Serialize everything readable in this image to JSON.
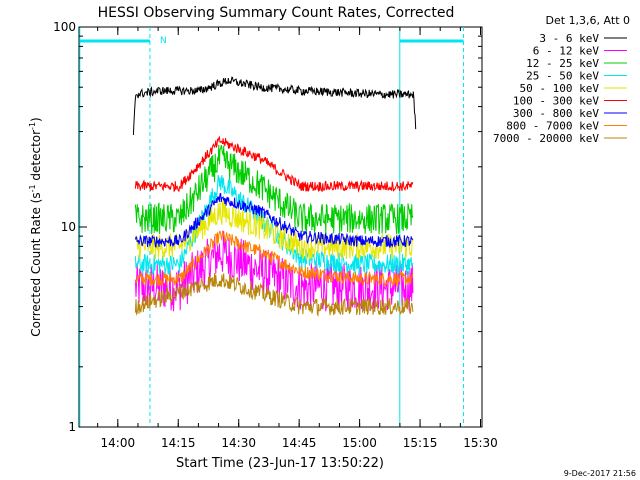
{
  "chart_data": {
    "type": "line",
    "title": "HESSI Observing Summary Count Rates, Corrected",
    "xlabel": "Start Time (23-Jun-17 13:50:22)",
    "ylabel_main": "Corrected Count Rate (s",
    "ylabel_sup": "-1",
    "ylabel_mid": " detector",
    "ylabel_sup2": "-1",
    "ylabel_end": ")",
    "x_unit": "minutes after 13:50:22",
    "xlim": [
      0,
      100
    ],
    "ylim": [
      1,
      100
    ],
    "yscale": "log",
    "x_ticks": [
      {
        "label": "14:00",
        "value": 9.63
      },
      {
        "label": "14:15",
        "value": 24.63
      },
      {
        "label": "14:30",
        "value": 39.63
      },
      {
        "label": "14:45",
        "value": 54.63
      },
      {
        "label": "15:00",
        "value": 69.63
      },
      {
        "label": "15:15",
        "value": 84.63
      },
      {
        "label": "15:30",
        "value": 99.63
      }
    ],
    "y_ticks": [
      {
        "label": "100",
        "value": 100
      },
      {
        "label": "10",
        "value": 10
      },
      {
        "label": "1",
        "value": 1
      }
    ],
    "legend_header": "Det 1,3,6, Att 0",
    "legend_position": "right",
    "timestamp": "9-Dec-2017 21:56",
    "night_marker": "N",
    "markers": {
      "solid_lines_x": [
        0.2,
        79.6
      ],
      "dashed_lines_x": [
        17.6,
        95.4
      ],
      "bars": [
        [
          0.2,
          17.6
        ],
        [
          79.6,
          95.4
        ]
      ],
      "marker_color": "#00e5ee"
    },
    "series": [
      {
        "name": "3 - 6 keV",
        "color": "#000000",
        "base": 46,
        "peak": 52,
        "noise": 0.05,
        "samples": [
          [
            13.5,
            28
          ],
          [
            14,
            46
          ],
          [
            20,
            48
          ],
          [
            30,
            48
          ],
          [
            37,
            54
          ],
          [
            45,
            50
          ],
          [
            55,
            48
          ],
          [
            65,
            47
          ],
          [
            75,
            46
          ],
          [
            83,
            46
          ],
          [
            83.6,
            30
          ]
        ]
      },
      {
        "name": "6 - 12 keV",
        "color": "#ff00ff",
        "base": 5,
        "peak": 7.5,
        "noise": 0.28,
        "samples": [
          [
            14,
            5
          ],
          [
            25,
            5
          ],
          [
            35,
            7.5
          ],
          [
            45,
            6
          ],
          [
            55,
            5
          ],
          [
            70,
            5
          ],
          [
            83,
            5
          ]
        ]
      },
      {
        "name": "12 - 25 keV",
        "color": "#00cc00",
        "base": 11,
        "peak": 22,
        "noise": 0.18,
        "samples": [
          [
            14,
            11
          ],
          [
            25,
            11
          ],
          [
            35,
            22
          ],
          [
            45,
            16
          ],
          [
            55,
            11
          ],
          [
            70,
            11
          ],
          [
            83,
            11
          ]
        ]
      },
      {
        "name": "25 - 50 keV",
        "color": "#00e5ee",
        "base": 6.5,
        "peak": 17,
        "noise": 0.12,
        "samples": [
          [
            14,
            6.5
          ],
          [
            25,
            6.5
          ],
          [
            35,
            17
          ],
          [
            45,
            11
          ],
          [
            55,
            7
          ],
          [
            70,
            6.5
          ],
          [
            83,
            6.5
          ]
        ]
      },
      {
        "name": "50 - 100 keV",
        "color": "#e6e600",
        "base": 8,
        "peak": 12,
        "noise": 0.15,
        "samples": [
          [
            14,
            8
          ],
          [
            25,
            8
          ],
          [
            35,
            12
          ],
          [
            45,
            10
          ],
          [
            55,
            8
          ],
          [
            70,
            8
          ],
          [
            83,
            8
          ]
        ]
      },
      {
        "name": "100 - 300 keV",
        "color": "#ff0000",
        "base": 16,
        "peak": 27,
        "noise": 0.06,
        "samples": [
          [
            14,
            16
          ],
          [
            25,
            16
          ],
          [
            35,
            27
          ],
          [
            45,
            22
          ],
          [
            55,
            16
          ],
          [
            70,
            16
          ],
          [
            83,
            16
          ]
        ]
      },
      {
        "name": "300 - 800 keV",
        "color": "#0000ff",
        "base": 8.5,
        "peak": 14,
        "noise": 0.07,
        "samples": [
          [
            14,
            8.5
          ],
          [
            25,
            8.5
          ],
          [
            35,
            14
          ],
          [
            45,
            12
          ],
          [
            55,
            9
          ],
          [
            70,
            8.5
          ],
          [
            83,
            8.5
          ]
        ]
      },
      {
        "name": "800 - 7000 keV",
        "color": "#ff8000",
        "base": 5.5,
        "peak": 9,
        "noise": 0.08,
        "samples": [
          [
            14,
            5.5
          ],
          [
            25,
            5.5
          ],
          [
            35,
            9
          ],
          [
            45,
            7.5
          ],
          [
            55,
            6
          ],
          [
            70,
            5.5
          ],
          [
            83,
            5.5
          ]
        ]
      },
      {
        "name": "7000 - 20000 keV",
        "color": "#b8860b",
        "base": 4,
        "peak": 5.5,
        "noise": 0.1,
        "samples": [
          [
            14,
            4
          ],
          [
            35,
            5.5
          ],
          [
            55,
            4
          ],
          [
            83,
            4
          ]
        ]
      }
    ]
  }
}
